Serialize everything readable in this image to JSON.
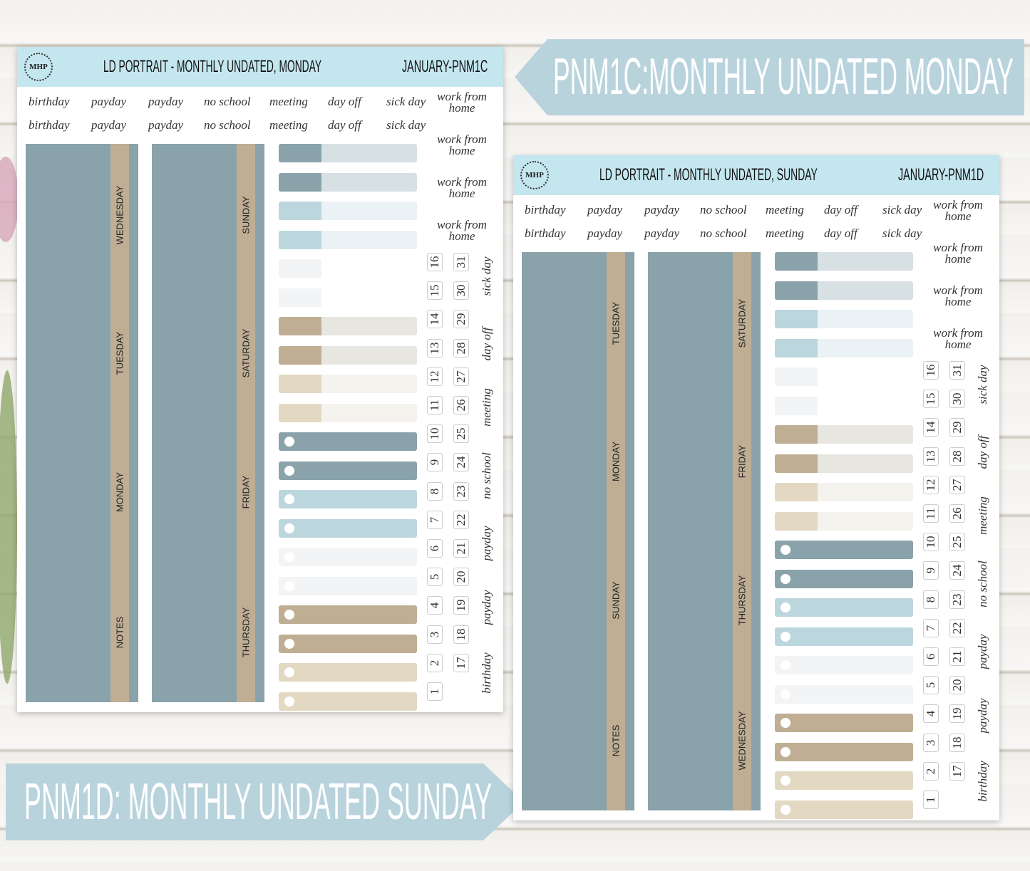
{
  "banners": [
    "PNM1C:MONTHLY UNDATED MONDAY",
    "PNM1D: MONTHLY UNDATED SUNDAY"
  ],
  "sheets": [
    {
      "logo": "MHP",
      "title": "LD PORTRAIT - MONTHLY UNDATED, MONDAY",
      "code": "JANUARY-PNM1C",
      "word_rows": [
        [
          "birthday",
          "payday",
          "payday",
          "no school",
          "meeting",
          "day off",
          "sick day"
        ],
        [
          "birthday",
          "payday",
          "payday",
          "no school",
          "meeting",
          "day off",
          "sick day"
        ]
      ],
      "work_from_home": [
        "work from home",
        "work from home",
        "work from home",
        "work from home"
      ],
      "strip1": [
        "WEDNESDAY",
        "TUESDAY",
        "MONDAY",
        "NOTES"
      ],
      "strip2": [
        "SUNDAY",
        "SATURDAY",
        "FRIDAY",
        "THURSDAY"
      ],
      "numbers_a": [
        "16",
        "15",
        "14",
        "13",
        "12",
        "11",
        "10",
        "9",
        "8",
        "7",
        "6",
        "5",
        "4",
        "3",
        "2",
        "1"
      ],
      "numbers_b": [
        "31",
        "30",
        "29",
        "28",
        "27",
        "26",
        "25",
        "24",
        "23",
        "22",
        "21",
        "20",
        "19",
        "18",
        "17"
      ],
      "side_words": [
        "sick day",
        "day off",
        "meeting",
        "no school",
        "payday",
        "payday",
        "birthday"
      ]
    },
    {
      "logo": "MHP",
      "title": "LD PORTRAIT - MONTHLY UNDATED, SUNDAY",
      "code": "JANUARY-PNM1D",
      "word_rows": [
        [
          "birthday",
          "payday",
          "payday",
          "no school",
          "meeting",
          "day off",
          "sick day"
        ],
        [
          "birthday",
          "payday",
          "payday",
          "no school",
          "meeting",
          "day off",
          "sick day"
        ]
      ],
      "work_from_home": [
        "work from home",
        "work from home",
        "work from home",
        "work from home"
      ],
      "strip1": [
        "TUESDAY",
        "MONDAY",
        "SUNDAY",
        "NOTES"
      ],
      "strip2": [
        "SATURDAY",
        "FRIDAY",
        "THURSDAY",
        "WEDNESDAY"
      ],
      "numbers_a": [
        "16",
        "15",
        "14",
        "13",
        "12",
        "11",
        "10",
        "9",
        "8",
        "7",
        "6",
        "5",
        "4",
        "3",
        "2",
        "1"
      ],
      "numbers_b": [
        "31",
        "30",
        "29",
        "28",
        "27",
        "26",
        "25",
        "24",
        "23",
        "22",
        "21",
        "20",
        "19",
        "18",
        "17"
      ],
      "side_words": [
        "sick day",
        "day off",
        "meeting",
        "no school",
        "payday",
        "payday",
        "birthday"
      ]
    }
  ]
}
